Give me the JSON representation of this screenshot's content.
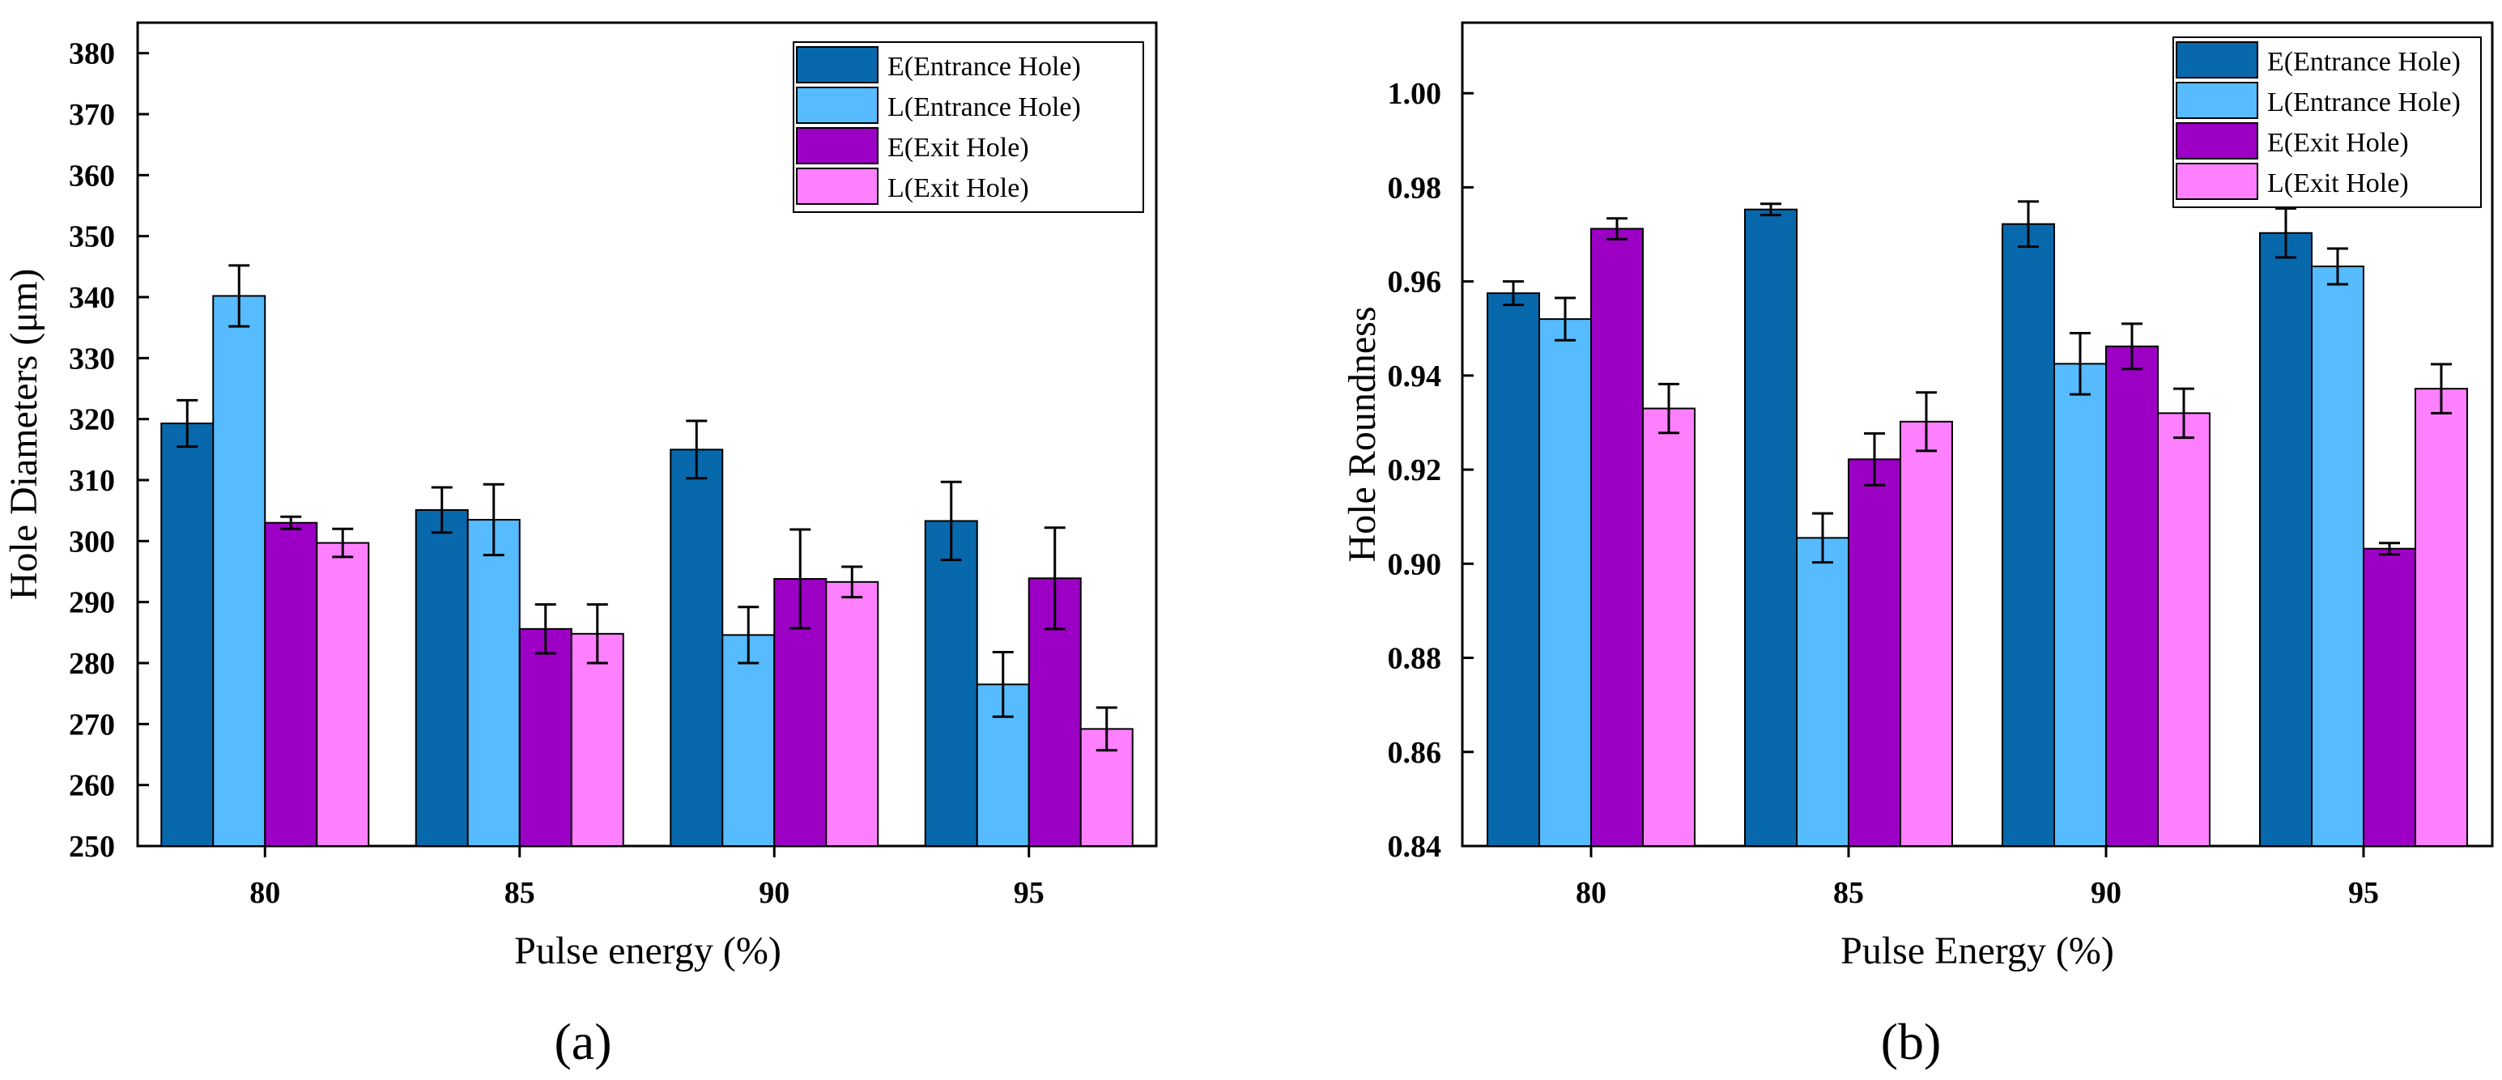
{
  "colors": {
    "e_entrance": "#0868ac",
    "l_entrance": "#56bbff",
    "e_exit": "#9c00c4",
    "l_exit": "#ff80ff"
  },
  "panels": [
    {
      "caption": "(a)",
      "chart_data": {
        "type": "bar",
        "categories": [
          "80",
          "85",
          "90",
          "95"
        ],
        "xlabel": "Pulse energy (%)",
        "ylabel": "Hole Diameters (μm)",
        "ylim": [
          250,
          385
        ],
        "yticks": [
          250,
          260,
          270,
          280,
          290,
          300,
          310,
          320,
          330,
          340,
          350,
          360,
          370,
          380
        ],
        "legend_position": "top-right",
        "series": [
          {
            "name": "E(Entrance Hole)",
            "values": [
              319.3,
              305.1,
              315.0,
              303.3
            ],
            "errors": [
              3.8,
              3.7,
              4.7,
              6.4
            ]
          },
          {
            "name": "L(Entrance Hole)",
            "values": [
              340.2,
              303.5,
              284.6,
              276.5
            ],
            "errors": [
              5.0,
              5.8,
              4.6,
              5.3
            ]
          },
          {
            "name": "E(Exit Hole)",
            "values": [
              303.0,
              285.6,
              293.8,
              293.9
            ],
            "errors": [
              1.0,
              4.0,
              8.1,
              8.3
            ]
          },
          {
            "name": "L(Exit Hole)",
            "values": [
              299.7,
              284.8,
              293.3,
              269.2
            ],
            "errors": [
              2.3,
              4.8,
              2.5,
              3.5
            ]
          }
        ]
      }
    },
    {
      "caption": "(b)",
      "chart_data": {
        "type": "bar",
        "categories": [
          "80",
          "85",
          "90",
          "95"
        ],
        "xlabel": "Pulse Energy (%)",
        "ylabel": "Hole Roundness",
        "ylim": [
          0.84,
          1.015
        ],
        "yticks": [
          "0.84",
          "0.86",
          "0.88",
          "0.90",
          "0.92",
          "0.94",
          "0.96",
          "0.98",
          "1.00"
        ],
        "legend_position": "top-right",
        "series": [
          {
            "name": "E(Entrance Hole)",
            "values": [
              0.9575,
              0.9753,
              0.9722,
              0.9703
            ],
            "errors": [
              0.0025,
              0.0012,
              0.0048,
              0.0052
            ]
          },
          {
            "name": "L(Entrance Hole)",
            "values": [
              0.952,
              0.9055,
              0.9425,
              0.9632
            ],
            "errors": [
              0.0045,
              0.0052,
              0.0065,
              0.0038
            ]
          },
          {
            "name": "E(Exit Hole)",
            "values": [
              0.9712,
              0.9222,
              0.9462,
              0.9032
            ],
            "errors": [
              0.0022,
              0.0055,
              0.0048,
              0.0012
            ]
          },
          {
            "name": "L(Exit Hole)",
            "values": [
              0.933,
              0.9302,
              0.932,
              0.9372
            ],
            "errors": [
              0.0052,
              0.0062,
              0.0052,
              0.0052
            ]
          }
        ]
      }
    }
  ]
}
